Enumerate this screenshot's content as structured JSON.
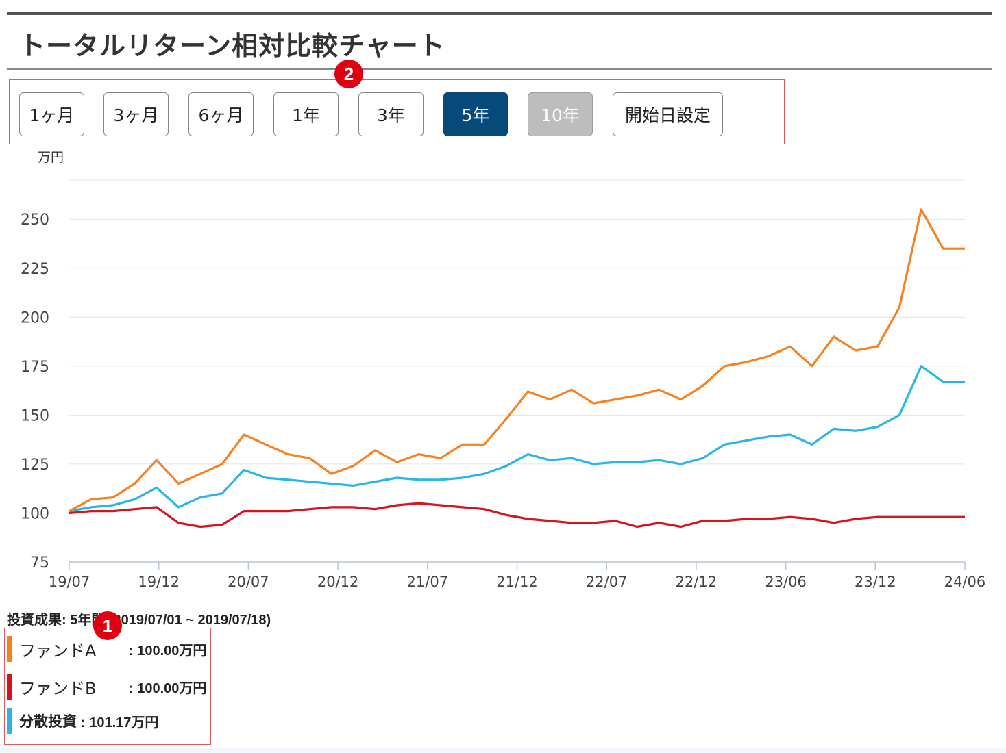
{
  "page_title": "トータルリターン相対比較チャート",
  "range_buttons": [
    {
      "label": "1ヶ月",
      "state": "normal"
    },
    {
      "label": "3ヶ月",
      "state": "normal"
    },
    {
      "label": "6ヶ月",
      "state": "normal"
    },
    {
      "label": "1年",
      "state": "normal"
    },
    {
      "label": "3年",
      "state": "normal"
    },
    {
      "label": "5年",
      "state": "active"
    },
    {
      "label": "10年",
      "state": "disabled"
    },
    {
      "label": "開始日設定",
      "state": "normal"
    }
  ],
  "badges": {
    "one": "1",
    "two": "2"
  },
  "colors": {
    "accent": "#064a7a",
    "annotation": "#e00012",
    "fund_a": "#f5821f",
    "fund_b": "#d7141e",
    "diversified": "#29b5e8"
  },
  "results": {
    "title": "投資成果: 5年間 (2019/07/01 ~ 2019/07/18)",
    "items": [
      {
        "name": "ファンドA",
        "value": ": 100.00万円"
      },
      {
        "name": "ファンドB",
        "value": ": 100.00万円"
      },
      {
        "name": "分散投資",
        "value": ": 101.17万円"
      }
    ]
  },
  "chart_data": {
    "type": "line",
    "ylabel": "万円",
    "ylim": [
      75,
      270
    ],
    "yticks": [
      75,
      100,
      125,
      150,
      175,
      200,
      225,
      250
    ],
    "grid": true,
    "xticks": [
      "19/07",
      "19/12",
      "20/07",
      "20/12",
      "21/07",
      "21/12",
      "22/07",
      "22/12",
      "23/06",
      "23/12",
      "24/06"
    ],
    "x": [
      "19/07",
      "19/09",
      "19/11",
      "20/01",
      "20/02",
      "20/03",
      "20/04",
      "20/05",
      "20/07",
      "20/08",
      "20/09",
      "20/10",
      "20/12",
      "21/01",
      "21/03",
      "21/05",
      "21/06",
      "21/08",
      "21/10",
      "21/12",
      "22/01",
      "22/02",
      "22/03",
      "22/05",
      "22/06",
      "22/08",
      "22/10",
      "22/12",
      "23/01",
      "23/02",
      "23/04",
      "23/05",
      "23/07",
      "23/09",
      "23/10",
      "23/12",
      "24/01",
      "24/02",
      "24/03",
      "24/04",
      "24/05",
      "24/06"
    ],
    "series": [
      {
        "name": "ファンドA",
        "color": "#f5821f",
        "values": [
          101,
          107,
          108,
          115,
          127,
          115,
          120,
          125,
          140,
          135,
          130,
          128,
          120,
          124,
          132,
          126,
          130,
          128,
          135,
          135,
          148,
          162,
          158,
          163,
          156,
          158,
          160,
          163,
          158,
          165,
          175,
          177,
          180,
          185,
          175,
          190,
          183,
          185,
          205,
          255,
          235,
          235
        ]
      },
      {
        "name": "ファンドB",
        "color": "#d7141e",
        "values": [
          100,
          101,
          101,
          102,
          103,
          95,
          93,
          94,
          101,
          101,
          101,
          102,
          103,
          103,
          102,
          104,
          105,
          104,
          103,
          102,
          99,
          97,
          96,
          95,
          95,
          96,
          93,
          95,
          93,
          96,
          96,
          97,
          97,
          98,
          97,
          95,
          97,
          98,
          98,
          98,
          98,
          98
        ]
      },
      {
        "name": "分散投資",
        "color": "#29b5e8",
        "values": [
          101,
          103,
          104,
          107,
          113,
          103,
          108,
          110,
          122,
          118,
          117,
          116,
          115,
          114,
          116,
          118,
          117,
          117,
          118,
          120,
          124,
          130,
          127,
          128,
          125,
          126,
          126,
          127,
          125,
          128,
          135,
          137,
          139,
          140,
          135,
          143,
          142,
          144,
          150,
          175,
          167,
          167
        ]
      }
    ]
  }
}
